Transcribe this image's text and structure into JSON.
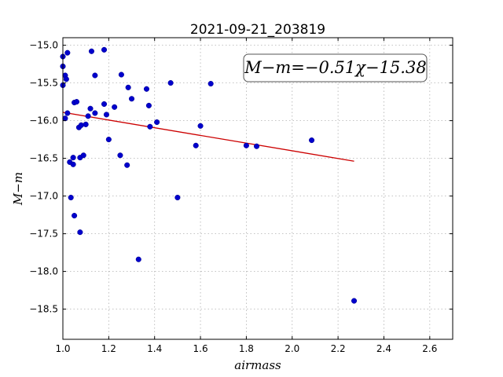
{
  "chart_data": {
    "type": "scatter",
    "title": "2021-09-21_203819",
    "xlabel": "airmass",
    "ylabel": "M−m",
    "xlim": [
      1.0,
      2.7
    ],
    "ylim": [
      -18.9,
      -14.9
    ],
    "y_inverted": true,
    "grid": true,
    "x_ticks": [
      "1.0",
      "1.2",
      "1.4",
      "1.6",
      "1.8",
      "2.0",
      "2.2",
      "2.4",
      "2.6"
    ],
    "y_ticks": [
      "−15.0",
      "−15.5",
      "−16.0",
      "−16.5",
      "−17.0",
      "−17.5",
      "−18.0",
      "−18.5"
    ],
    "annotation": "M−m=−0.51χ−15.38",
    "fit": {
      "slope": -0.51,
      "intercept": -15.38,
      "x_range": [
        1.0,
        2.27
      ],
      "color": "#cc0000"
    },
    "point_color": "#0000cc",
    "points": [
      {
        "x": 1.0,
        "y": -15.15
      },
      {
        "x": 1.0,
        "y": -15.28
      },
      {
        "x": 1.0,
        "y": -15.53
      },
      {
        "x": 1.01,
        "y": -15.97
      },
      {
        "x": 1.01,
        "y": -15.4
      },
      {
        "x": 1.015,
        "y": -15.45
      },
      {
        "x": 1.02,
        "y": -15.1
      },
      {
        "x": 1.02,
        "y": -15.9
      },
      {
        "x": 1.03,
        "y": -16.55
      },
      {
        "x": 1.035,
        "y": -17.02
      },
      {
        "x": 1.045,
        "y": -16.49
      },
      {
        "x": 1.045,
        "y": -16.58
      },
      {
        "x": 1.05,
        "y": -17.26
      },
      {
        "x": 1.05,
        "y": -15.76
      },
      {
        "x": 1.06,
        "y": -15.75
      },
      {
        "x": 1.07,
        "y": -16.09
      },
      {
        "x": 1.075,
        "y": -16.49
      },
      {
        "x": 1.075,
        "y": -17.48
      },
      {
        "x": 1.08,
        "y": -16.06
      },
      {
        "x": 1.09,
        "y": -16.46
      },
      {
        "x": 1.1,
        "y": -16.05
      },
      {
        "x": 1.11,
        "y": -15.94
      },
      {
        "x": 1.12,
        "y": -15.84
      },
      {
        "x": 1.125,
        "y": -15.08
      },
      {
        "x": 1.14,
        "y": -15.9
      },
      {
        "x": 1.14,
        "y": -15.4
      },
      {
        "x": 1.18,
        "y": -15.06
      },
      {
        "x": 1.18,
        "y": -15.78
      },
      {
        "x": 1.19,
        "y": -15.92
      },
      {
        "x": 1.2,
        "y": -16.25
      },
      {
        "x": 1.225,
        "y": -15.82
      },
      {
        "x": 1.25,
        "y": -16.46
      },
      {
        "x": 1.255,
        "y": -15.39
      },
      {
        "x": 1.28,
        "y": -16.59
      },
      {
        "x": 1.285,
        "y": -15.56
      },
      {
        "x": 1.3,
        "y": -15.71
      },
      {
        "x": 1.33,
        "y": -17.84
      },
      {
        "x": 1.365,
        "y": -15.58
      },
      {
        "x": 1.375,
        "y": -15.8
      },
      {
        "x": 1.38,
        "y": -16.08
      },
      {
        "x": 1.41,
        "y": -16.02
      },
      {
        "x": 1.47,
        "y": -15.5
      },
      {
        "x": 1.5,
        "y": -17.02
      },
      {
        "x": 1.58,
        "y": -16.33
      },
      {
        "x": 1.6,
        "y": -16.07
      },
      {
        "x": 1.645,
        "y": -15.51
      },
      {
        "x": 1.8,
        "y": -16.33
      },
      {
        "x": 1.845,
        "y": -16.34
      },
      {
        "x": 2.085,
        "y": -16.26
      },
      {
        "x": 2.27,
        "y": -18.39
      }
    ]
  }
}
